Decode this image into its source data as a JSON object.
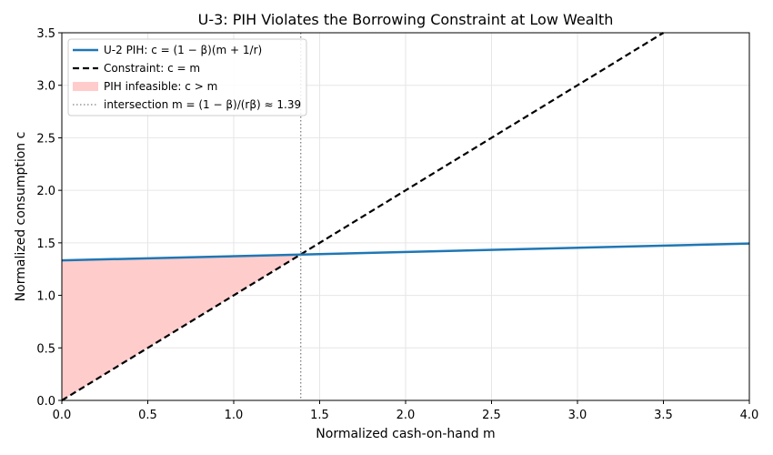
{
  "chart_data": {
    "type": "line",
    "title": "U-3: PIH Violates the Borrowing Constraint at Low Wealth",
    "xlabel": "Normalized cash-on-hand m",
    "ylabel": "Normalized consumption c",
    "xlim": [
      0.0,
      4.0
    ],
    "ylim": [
      0.0,
      3.5
    ],
    "xticks": [
      "0.0",
      "0.5",
      "1.0",
      "1.5",
      "2.0",
      "2.5",
      "3.0",
      "3.5",
      "4.0"
    ],
    "yticks": [
      "0.0",
      "0.5",
      "1.0",
      "1.5",
      "2.0",
      "2.5",
      "3.0",
      "3.5"
    ],
    "grid": true,
    "legend_position": "top-left",
    "series": [
      {
        "name": "U-2 PIH: c = (1 − β)(m + 1/r)",
        "style": "solid",
        "color": "#1f77b4",
        "x": [
          0.0,
          4.0
        ],
        "y": [
          1.333,
          1.493
        ]
      },
      {
        "name": "Constraint: c = m",
        "style": "dashed",
        "color": "#000000",
        "x": [
          0.0,
          3.5
        ],
        "y": [
          0.0,
          3.5
        ]
      }
    ],
    "fill": {
      "name": "PIH infeasible: c > m",
      "color": "#ffcccc",
      "x_range": [
        0.0,
        1.39
      ]
    },
    "vline": {
      "name": "intersection m = (1 − β)/(rβ) ≈ 1.39",
      "x": 1.39,
      "style": "dotted",
      "color": "#808080"
    }
  }
}
